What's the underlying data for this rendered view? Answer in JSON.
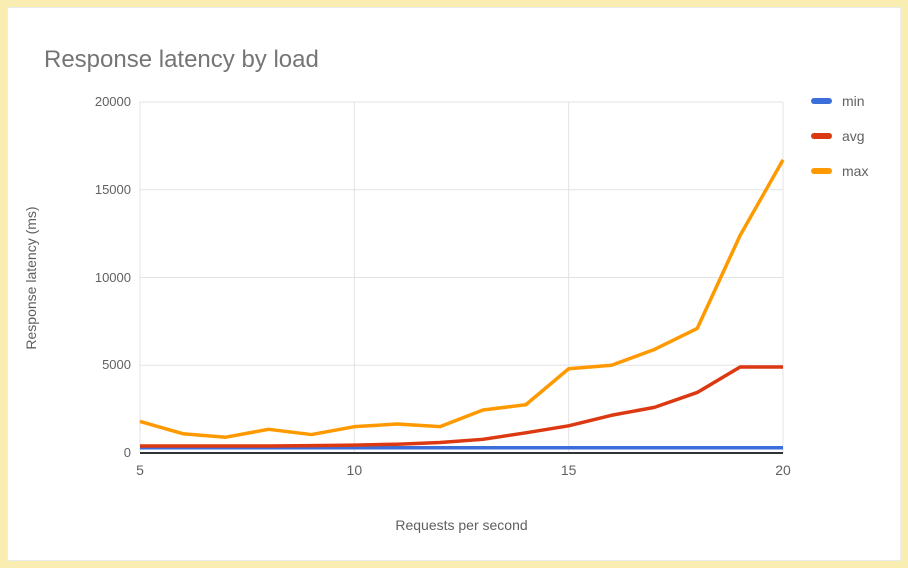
{
  "title": "Response latency by load",
  "frame": {
    "background_color": "#faedb2",
    "card_color": "#ffffff"
  },
  "chart_data": {
    "type": "line",
    "title": "Response latency by load",
    "xlabel": "Requests per second",
    "ylabel": "Response latency (ms)",
    "x": [
      5,
      6,
      7,
      8,
      9,
      10,
      11,
      12,
      13,
      14,
      15,
      16,
      17,
      18,
      19,
      20
    ],
    "series": [
      {
        "name": "min",
        "color": "#3b6ed8",
        "values": [
          300,
          300,
          300,
          300,
          300,
          300,
          300,
          300,
          300,
          300,
          300,
          300,
          300,
          300,
          300,
          300
        ]
      },
      {
        "name": "avg",
        "color": "#dc3912",
        "values": [
          400,
          400,
          400,
          400,
          420,
          450,
          500,
          600,
          780,
          1150,
          1550,
          2150,
          2600,
          3450,
          4900,
          4900
        ]
      },
      {
        "name": "max",
        "color": "#ff9900",
        "values": [
          1800,
          1100,
          900,
          1350,
          1050,
          1500,
          1650,
          1500,
          2450,
          2750,
          4800,
          5000,
          5900,
          7100,
          12400,
          16700
        ]
      }
    ],
    "xlim": [
      5,
      20
    ],
    "ylim": [
      0,
      20000
    ],
    "x_ticks": [
      5,
      10,
      15,
      20
    ],
    "y_ticks": [
      0,
      5000,
      10000,
      15000,
      20000
    ],
    "grid": true,
    "legend_position": "right",
    "gridline_color": "#e3e3e3",
    "axis_line_color": "#333333"
  }
}
